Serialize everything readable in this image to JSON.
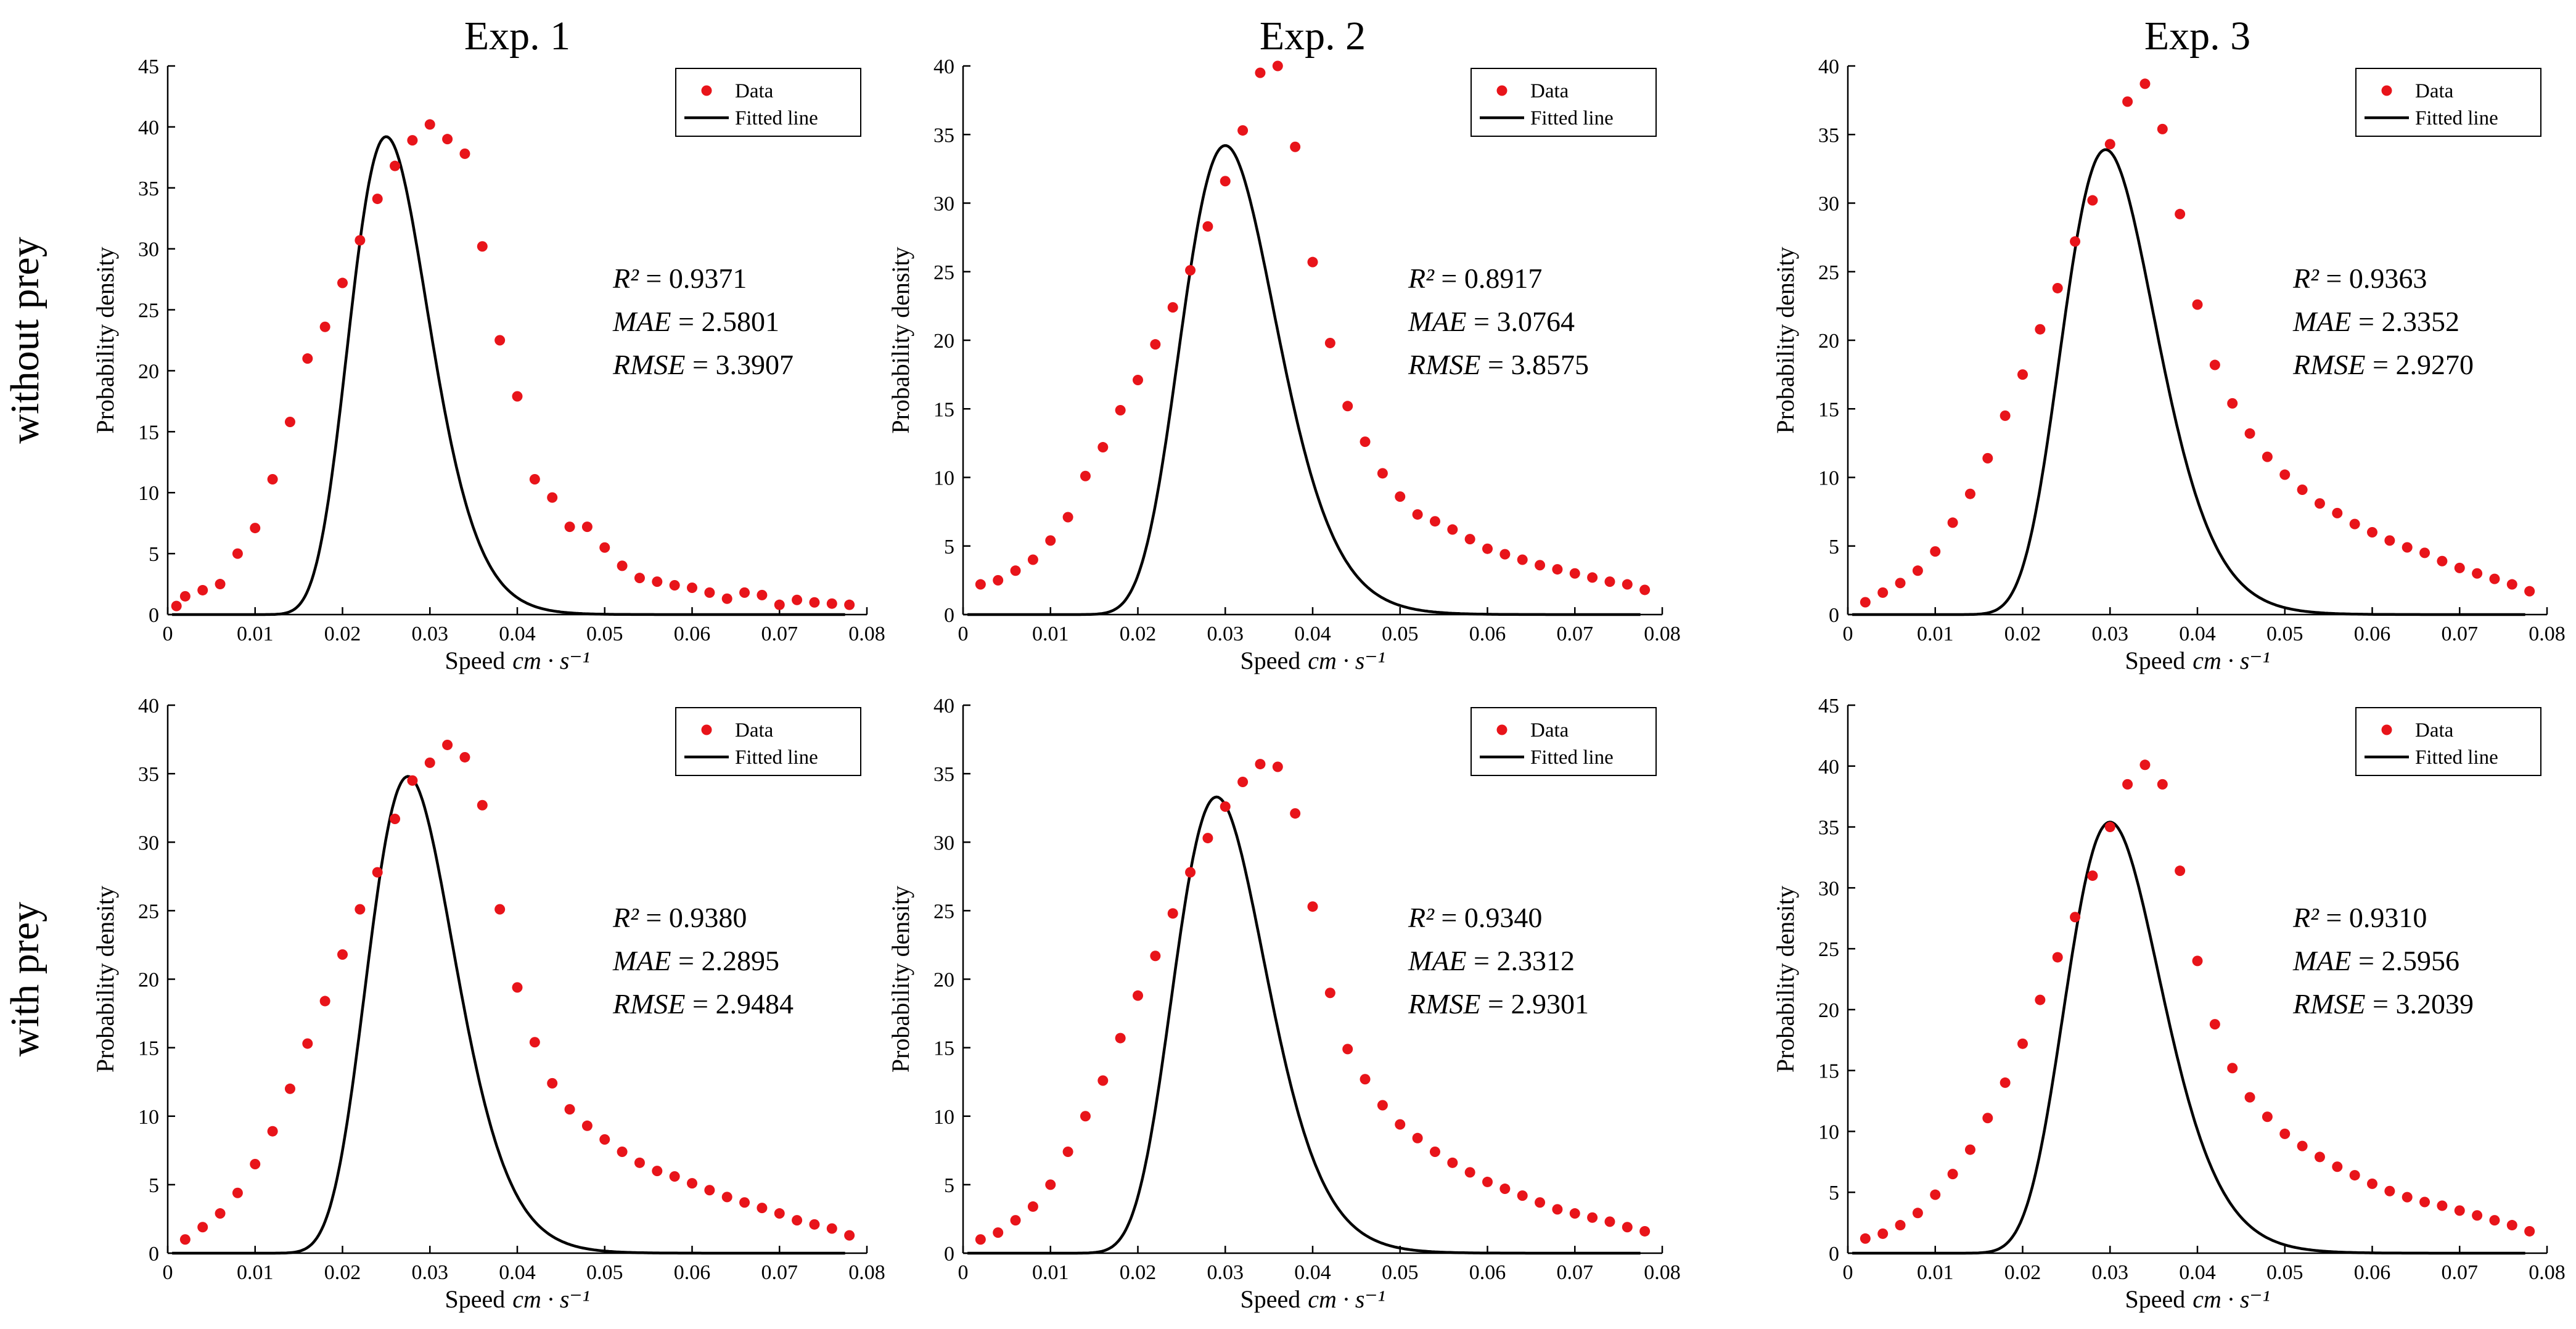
{
  "column_titles": [
    "Exp. 1",
    "Exp. 2",
    "Exp. 3"
  ],
  "row_labels": [
    "without prey",
    "with prey"
  ],
  "colors": {
    "data": "#e8141a",
    "line": "#000000",
    "axis": "#000000"
  },
  "chart_data": [
    {
      "type": "scatter",
      "row": "without prey",
      "column": "Exp. 1",
      "xlabel_prefix": "Speed",
      "xlabel_unit": "cm · s⁻¹",
      "ylabel": "Probability density",
      "xlim": [
        0,
        0.08
      ],
      "ylim": [
        0,
        45
      ],
      "xticks": [
        0,
        0.01,
        0.02,
        0.03,
        0.04,
        0.05,
        0.06,
        0.07,
        0.08
      ],
      "xticklabels": [
        "0",
        "0.01",
        "0.02",
        "0.03",
        "0.04",
        "0.05",
        "0.06",
        "0.07",
        "0.08"
      ],
      "yticks": [
        0,
        5,
        10,
        15,
        20,
        25,
        30,
        35,
        40,
        45
      ],
      "legend": [
        "Data",
        "Fitted line"
      ],
      "fit": {
        "peak_x": 0.025,
        "peak_y": 39.2,
        "shape": 5.5
      },
      "stats": {
        "r2_label": "R²",
        "r2": "0.9371",
        "mae_label": "MAE",
        "mae": "2.5801",
        "rmse_label": "RMSE",
        "rmse": "3.3907"
      },
      "x": [
        0.001,
        0.002,
        0.004,
        0.006,
        0.008,
        0.01,
        0.012,
        0.014,
        0.016,
        0.018,
        0.02,
        0.022,
        0.024,
        0.026,
        0.028,
        0.03,
        0.032,
        0.034,
        0.036,
        0.038,
        0.04,
        0.042,
        0.044,
        0.046,
        0.048,
        0.05,
        0.052,
        0.054,
        0.056,
        0.058,
        0.06,
        0.062,
        0.064,
        0.066,
        0.068,
        0.07,
        0.072,
        0.074,
        0.076,
        0.078
      ],
      "y": [
        0.7,
        1.5,
        2.0,
        2.5,
        5.0,
        7.1,
        11.1,
        15.8,
        21.0,
        23.6,
        27.2,
        30.7,
        34.1,
        36.8,
        38.9,
        40.2,
        39.0,
        37.8,
        30.2,
        22.5,
        17.9,
        11.1,
        9.6,
        7.2,
        7.2,
        5.5,
        4.0,
        3.0,
        2.7,
        2.4,
        2.2,
        1.8,
        1.3,
        1.8,
        1.6,
        0.8,
        1.2,
        1.0,
        0.9,
        0.8
      ]
    },
    {
      "type": "scatter",
      "row": "without prey",
      "column": "Exp. 2",
      "xlabel_prefix": "Speed",
      "xlabel_unit": "cm · s⁻¹",
      "ylabel": "Probability density",
      "xlim": [
        0,
        0.08
      ],
      "ylim": [
        0,
        40
      ],
      "xticks": [
        0,
        0.01,
        0.02,
        0.03,
        0.04,
        0.05,
        0.06,
        0.07,
        0.08
      ],
      "xticklabels": [
        "0",
        "0.01",
        "0.02",
        "0.03",
        "0.04",
        "0.05",
        "0.06",
        "0.07",
        "0.08"
      ],
      "yticks": [
        0,
        5,
        10,
        15,
        20,
        25,
        30,
        35,
        40
      ],
      "legend": [
        "Data",
        "Fitted line"
      ],
      "fit": {
        "peak_x": 0.03,
        "peak_y": 34.2,
        "shape": 5.5
      },
      "stats": {
        "r2_label": "R²",
        "r2": "0.8917",
        "mae_label": "MAE",
        "mae": "3.0764",
        "rmse_label": "RMSE",
        "rmse": "3.8575"
      },
      "x": [
        0.002,
        0.004,
        0.006,
        0.008,
        0.01,
        0.012,
        0.014,
        0.016,
        0.018,
        0.02,
        0.022,
        0.024,
        0.026,
        0.028,
        0.03,
        0.032,
        0.034,
        0.036,
        0.038,
        0.04,
        0.042,
        0.044,
        0.046,
        0.048,
        0.05,
        0.052,
        0.054,
        0.056,
        0.058,
        0.06,
        0.062,
        0.064,
        0.066,
        0.068,
        0.07,
        0.072,
        0.074,
        0.076,
        0.078
      ],
      "y": [
        2.2,
        2.5,
        3.2,
        4.0,
        5.4,
        7.1,
        10.1,
        12.2,
        14.9,
        17.1,
        19.7,
        22.4,
        25.1,
        28.3,
        31.6,
        35.3,
        39.5,
        40.0,
        34.1,
        25.7,
        19.8,
        15.2,
        12.6,
        10.3,
        8.6,
        7.3,
        6.8,
        6.2,
        5.5,
        4.8,
        4.4,
        4.0,
        3.6,
        3.3,
        3.0,
        2.7,
        2.4,
        2.2,
        1.8
      ]
    },
    {
      "type": "scatter",
      "row": "without prey",
      "column": "Exp. 3",
      "xlabel_prefix": "Speed",
      "xlabel_unit": "cm · s⁻¹",
      "ylabel": "Probability density",
      "xlim": [
        0,
        0.08
      ],
      "ylim": [
        0,
        40
      ],
      "xticks": [
        0,
        0.01,
        0.02,
        0.03,
        0.04,
        0.05,
        0.06,
        0.07,
        0.08
      ],
      "xticklabels": [
        "0",
        "0.01",
        "0.02",
        "0.03",
        "0.04",
        "0.05",
        "0.06",
        "0.07",
        "0.08"
      ],
      "yticks": [
        0,
        5,
        10,
        15,
        20,
        25,
        30,
        35,
        40
      ],
      "legend": [
        "Data",
        "Fitted line"
      ],
      "fit": {
        "peak_x": 0.0295,
        "peak_y": 33.9,
        "shape": 5.5
      },
      "stats": {
        "r2_label": "R²",
        "r2": "0.9363",
        "mae_label": "MAE",
        "mae": "2.3352",
        "rmse_label": "RMSE",
        "rmse": "2.9270"
      },
      "x": [
        0.002,
        0.004,
        0.006,
        0.008,
        0.01,
        0.012,
        0.014,
        0.016,
        0.018,
        0.02,
        0.022,
        0.024,
        0.026,
        0.028,
        0.03,
        0.032,
        0.034,
        0.036,
        0.038,
        0.04,
        0.042,
        0.044,
        0.046,
        0.048,
        0.05,
        0.052,
        0.054,
        0.056,
        0.058,
        0.06,
        0.062,
        0.064,
        0.066,
        0.068,
        0.07,
        0.072,
        0.074,
        0.076,
        0.078
      ],
      "y": [
        0.9,
        1.6,
        2.3,
        3.2,
        4.6,
        6.7,
        8.8,
        11.4,
        14.5,
        17.5,
        20.8,
        23.8,
        27.2,
        30.2,
        34.3,
        37.4,
        38.7,
        35.4,
        29.2,
        22.6,
        18.2,
        15.4,
        13.2,
        11.5,
        10.2,
        9.1,
        8.1,
        7.4,
        6.6,
        6.0,
        5.4,
        4.9,
        4.5,
        3.9,
        3.4,
        3.0,
        2.6,
        2.2,
        1.7
      ]
    },
    {
      "type": "scatter",
      "row": "with prey",
      "column": "Exp. 1",
      "xlabel_prefix": "Speed",
      "xlabel_unit": "cm · s⁻¹",
      "ylabel": "Probability density",
      "xlim": [
        0,
        0.08
      ],
      "ylim": [
        0,
        40
      ],
      "xticks": [
        0,
        0.01,
        0.02,
        0.03,
        0.04,
        0.05,
        0.06,
        0.07,
        0.08
      ],
      "xticklabels": [
        "0",
        "0.01",
        "0.02",
        "0.03",
        "0.04",
        "0.05",
        "0.06",
        "0.07",
        "0.08"
      ],
      "yticks": [
        0,
        5,
        10,
        15,
        20,
        25,
        30,
        35,
        40
      ],
      "legend": [
        "Data",
        "Fitted line"
      ],
      "fit": {
        "peak_x": 0.0275,
        "peak_y": 34.8,
        "shape": 5.5
      },
      "stats": {
        "r2_label": "R²",
        "r2": "0.9380",
        "mae_label": "MAE",
        "mae": "2.2895",
        "rmse_label": "RMSE",
        "rmse": "2.9484"
      },
      "x": [
        0.002,
        0.004,
        0.006,
        0.008,
        0.01,
        0.012,
        0.014,
        0.016,
        0.018,
        0.02,
        0.022,
        0.024,
        0.026,
        0.028,
        0.03,
        0.032,
        0.034,
        0.036,
        0.038,
        0.04,
        0.042,
        0.044,
        0.046,
        0.048,
        0.05,
        0.052,
        0.054,
        0.056,
        0.058,
        0.06,
        0.062,
        0.064,
        0.066,
        0.068,
        0.07,
        0.072,
        0.074,
        0.076,
        0.078
      ],
      "y": [
        1.0,
        1.9,
        2.9,
        4.4,
        6.5,
        8.9,
        12.0,
        15.3,
        18.4,
        21.8,
        25.1,
        27.8,
        31.7,
        34.5,
        35.8,
        37.1,
        36.2,
        32.7,
        25.1,
        19.4,
        15.4,
        12.4,
        10.5,
        9.3,
        8.3,
        7.4,
        6.6,
        6.0,
        5.6,
        5.1,
        4.6,
        4.1,
        3.7,
        3.3,
        2.9,
        2.4,
        2.1,
        1.8,
        1.3
      ]
    },
    {
      "type": "scatter",
      "row": "with prey",
      "column": "Exp. 2",
      "xlabel_prefix": "Speed",
      "xlabel_unit": "cm · s⁻¹",
      "ylabel": "Probability density",
      "xlim": [
        0,
        0.08
      ],
      "ylim": [
        0,
        40
      ],
      "xticks": [
        0,
        0.01,
        0.02,
        0.03,
        0.04,
        0.05,
        0.06,
        0.07,
        0.08
      ],
      "xticklabels": [
        "0",
        "0.01",
        "0.02",
        "0.03",
        "0.04",
        "0.05",
        "0.06",
        "0.07",
        "0.08"
      ],
      "yticks": [
        0,
        5,
        10,
        15,
        20,
        25,
        30,
        35,
        40
      ],
      "legend": [
        "Data",
        "Fitted line"
      ],
      "fit": {
        "peak_x": 0.029,
        "peak_y": 33.3,
        "shape": 5.5
      },
      "stats": {
        "r2_label": "R²",
        "r2": "0.9340",
        "mae_label": "MAE",
        "mae": "2.3312",
        "rmse_label": "RMSE",
        "rmse": "2.9301"
      },
      "x": [
        0.002,
        0.004,
        0.006,
        0.008,
        0.01,
        0.012,
        0.014,
        0.016,
        0.018,
        0.02,
        0.022,
        0.024,
        0.026,
        0.028,
        0.03,
        0.032,
        0.034,
        0.036,
        0.038,
        0.04,
        0.042,
        0.044,
        0.046,
        0.048,
        0.05,
        0.052,
        0.054,
        0.056,
        0.058,
        0.06,
        0.062,
        0.064,
        0.066,
        0.068,
        0.07,
        0.072,
        0.074,
        0.076,
        0.078
      ],
      "y": [
        1.0,
        1.5,
        2.4,
        3.4,
        5.0,
        7.4,
        10.0,
        12.6,
        15.7,
        18.8,
        21.7,
        24.8,
        27.8,
        30.3,
        32.6,
        34.4,
        35.7,
        35.5,
        32.1,
        25.3,
        19.0,
        14.9,
        12.7,
        10.8,
        9.4,
        8.4,
        7.4,
        6.6,
        5.9,
        5.2,
        4.7,
        4.2,
        3.7,
        3.2,
        2.9,
        2.6,
        2.3,
        1.9,
        1.6
      ]
    },
    {
      "type": "scatter",
      "row": "with prey",
      "column": "Exp. 3",
      "xlabel_prefix": "Speed",
      "xlabel_unit": "cm · s⁻¹",
      "ylabel": "Probability density",
      "xlim": [
        0,
        0.08
      ],
      "ylim": [
        0,
        45
      ],
      "xticks": [
        0,
        0.01,
        0.02,
        0.03,
        0.04,
        0.05,
        0.06,
        0.07,
        0.08
      ],
      "xticklabels": [
        "0",
        "0.01",
        "0.02",
        "0.03",
        "0.04",
        "0.05",
        "0.06",
        "0.07",
        "0.08"
      ],
      "yticks": [
        0,
        5,
        10,
        15,
        20,
        25,
        30,
        35,
        40,
        45
      ],
      "legend": [
        "Data",
        "Fitted line"
      ],
      "fit": {
        "peak_x": 0.03,
        "peak_y": 35.4,
        "shape": 5.5
      },
      "stats": {
        "r2_label": "R²",
        "r2": "0.9310",
        "mae_label": "MAE",
        "mae": "2.5956",
        "rmse_label": "RMSE",
        "rmse": "3.2039"
      },
      "x": [
        0.002,
        0.004,
        0.006,
        0.008,
        0.01,
        0.012,
        0.014,
        0.016,
        0.018,
        0.02,
        0.022,
        0.024,
        0.026,
        0.028,
        0.03,
        0.032,
        0.034,
        0.036,
        0.038,
        0.04,
        0.042,
        0.044,
        0.046,
        0.048,
        0.05,
        0.052,
        0.054,
        0.056,
        0.058,
        0.06,
        0.062,
        0.064,
        0.066,
        0.068,
        0.07,
        0.072,
        0.074,
        0.076,
        0.078
      ],
      "y": [
        1.2,
        1.6,
        2.3,
        3.3,
        4.8,
        6.5,
        8.5,
        11.1,
        14.0,
        17.2,
        20.8,
        24.3,
        27.6,
        31.0,
        35.0,
        38.5,
        40.1,
        38.5,
        31.4,
        24.0,
        18.8,
        15.2,
        12.8,
        11.2,
        9.8,
        8.8,
        7.9,
        7.1,
        6.4,
        5.7,
        5.1,
        4.6,
        4.2,
        3.9,
        3.5,
        3.1,
        2.7,
        2.3,
        1.8
      ]
    }
  ]
}
